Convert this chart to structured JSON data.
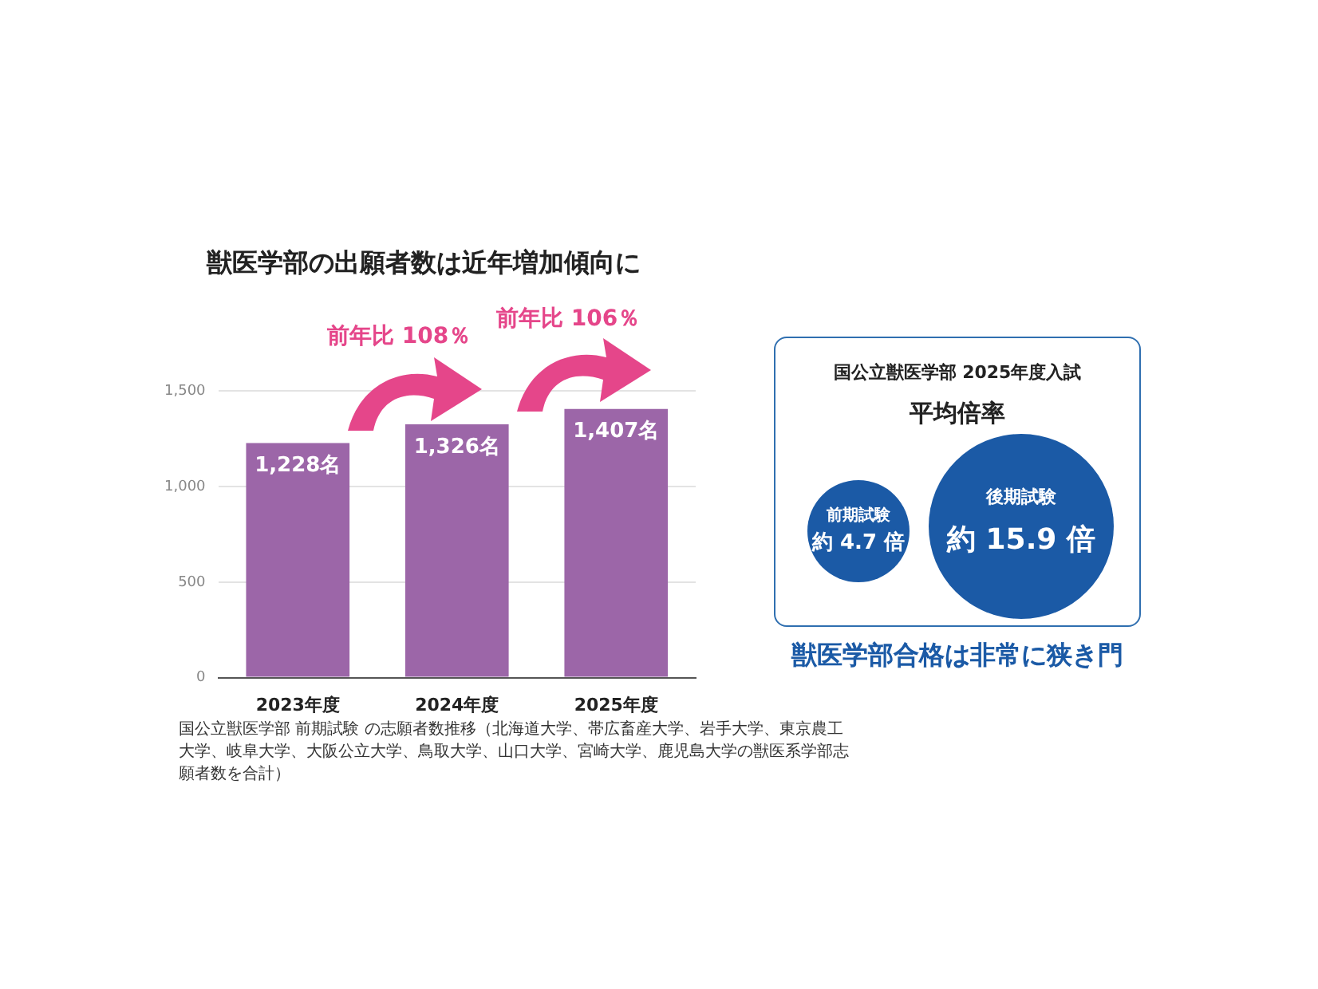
{
  "chart_data": {
    "type": "bar",
    "title": "獣医学部の出願者数は近年増加傾向に",
    "categories": [
      "2023年度",
      "2024年度",
      "2025年度"
    ],
    "values": [
      1228,
      1326,
      1407
    ],
    "value_labels": [
      "1,228名",
      "1,326名",
      "1,407名"
    ],
    "color": "#9c66a8",
    "ylim": [
      0,
      1500
    ],
    "yticks": [
      0,
      {
        "value": 500,
        "label": "500"
      },
      {
        "value": 1000,
        "label": "1,000"
      },
      {
        "value": 1500,
        "label": "1,500"
      }
    ],
    "grid": "y",
    "legend": false,
    "annotations": [
      "前年比 108％",
      "前年比 106％",
      "国公立獣医学部 2025年度入試",
      "平均倍率",
      "前期試験",
      "約 4.7 倍",
      "後期試験",
      "約 15.9 倍",
      "獣医学部合格は非常に狭き門",
      "国公立獣医学部 前期試験 の志願者数推移（北海道大学、帯広畜産大学、岩手大学、東京農工大学、岐阜大学、大阪公立大学、鳥取大学、山口大学、宮崎大学、鹿児島大学の獣医系学部志願者数を合計）"
    ]
  }
}
